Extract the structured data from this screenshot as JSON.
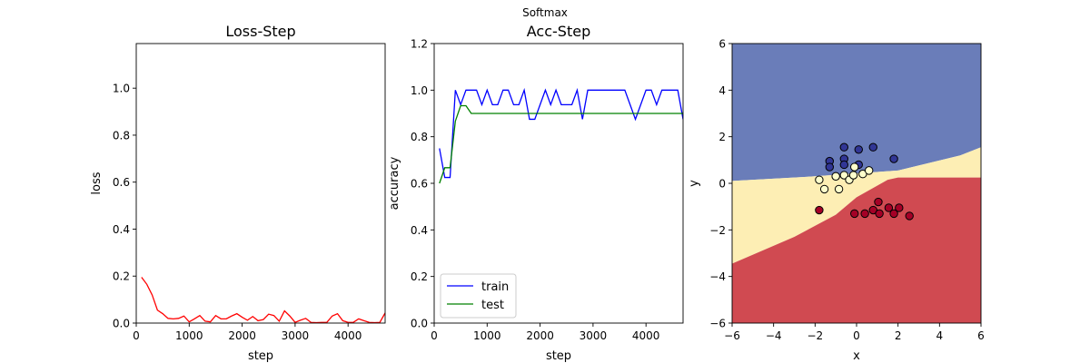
{
  "figure": {
    "suptitle": "Softmax"
  },
  "chart_data": [
    {
      "type": "line",
      "title": "Loss-Step",
      "xlabel": "step",
      "ylabel": "loss",
      "xlim": [
        0,
        4700
      ],
      "ylim": [
        0,
        1.19
      ],
      "xticks": [
        0,
        1000,
        2000,
        3000,
        4000
      ],
      "yticks": [
        0.0,
        0.2,
        0.4,
        0.6,
        0.8,
        1.0
      ],
      "grid": false,
      "series": [
        {
          "color": "#ff0000",
          "x": [
            100,
            200,
            300,
            400,
            500,
            600,
            700,
            800,
            900,
            1000,
            1100,
            1200,
            1300,
            1400,
            1500,
            1600,
            1700,
            1800,
            1900,
            2000,
            2100,
            2200,
            2300,
            2400,
            2500,
            2600,
            2700,
            2800,
            2900,
            3000,
            3100,
            3200,
            3300,
            3400,
            3500,
            3600,
            3700,
            3800,
            3900,
            4000,
            4100,
            4200,
            4300,
            4400,
            4500,
            4600,
            4700
          ],
          "y": [
            0.195,
            0.165,
            0.12,
            0.055,
            0.04,
            0.02,
            0.018,
            0.02,
            0.03,
            0.005,
            0.018,
            0.032,
            0.008,
            0.005,
            0.032,
            0.018,
            0.018,
            0.03,
            0.04,
            0.025,
            0.012,
            0.028,
            0.01,
            0.015,
            0.038,
            0.032,
            0.008,
            0.052,
            0.03,
            0.003,
            0.012,
            0.02,
            0.003,
            0.002,
            0.003,
            0.003,
            0.03,
            0.04,
            0.01,
            0.003,
            0.003,
            0.018,
            0.01,
            0.003,
            0.002,
            0.003,
            0.043
          ]
        }
      ]
    },
    {
      "type": "line",
      "title": "Acc-Step",
      "xlabel": "step",
      "ylabel": "accuracy",
      "xlim": [
        0,
        4700
      ],
      "ylim": [
        0,
        1.2
      ],
      "xticks": [
        0,
        1000,
        2000,
        3000,
        4000
      ],
      "yticks": [
        0.0,
        0.2,
        0.4,
        0.6,
        0.8,
        1.0,
        1.2
      ],
      "grid": false,
      "legend": "lower-left",
      "series": [
        {
          "name": "train",
          "color": "#0000ff",
          "x": [
            100,
            200,
            300,
            400,
            500,
            600,
            700,
            800,
            900,
            1000,
            1100,
            1200,
            1300,
            1400,
            1500,
            1600,
            1700,
            1800,
            1900,
            2000,
            2100,
            2200,
            2300,
            2400,
            2500,
            2600,
            2700,
            2800,
            2900,
            3000,
            3100,
            3200,
            3300,
            3400,
            3500,
            3600,
            3700,
            3800,
            3900,
            4000,
            4100,
            4200,
            4300,
            4400,
            4500,
            4600,
            4700
          ],
          "y": [
            0.75,
            0.625,
            0.625,
            1.0,
            0.9375,
            1.0,
            1.0,
            1.0,
            0.9375,
            1.0,
            0.9375,
            0.9375,
            1.0,
            1.0,
            0.9375,
            0.9375,
            1.0,
            0.875,
            0.875,
            0.9375,
            1.0,
            0.9375,
            1.0,
            0.9375,
            0.9375,
            0.9375,
            1.0,
            0.875,
            1.0,
            1.0,
            1.0,
            1.0,
            1.0,
            1.0,
            1.0,
            1.0,
            0.9375,
            0.875,
            0.9375,
            1.0,
            1.0,
            0.9375,
            1.0,
            1.0,
            1.0,
            1.0,
            0.875
          ]
        },
        {
          "name": "test",
          "color": "#008000",
          "x": [
            100,
            200,
            300,
            400,
            500,
            600,
            700,
            800,
            900,
            1000,
            1100,
            1200,
            1300,
            1400,
            1500,
            1600,
            1700,
            1800,
            1900,
            2000,
            2100,
            2200,
            2300,
            2400,
            2500,
            2600,
            2700,
            2800,
            2900,
            3000,
            3100,
            3200,
            3300,
            3400,
            3500,
            3600,
            3700,
            3800,
            3900,
            4000,
            4100,
            4200,
            4300,
            4400,
            4500,
            4600,
            4700
          ],
          "y": [
            0.6,
            0.667,
            0.667,
            0.867,
            0.933,
            0.933,
            0.9,
            0.9,
            0.9,
            0.9,
            0.9,
            0.9,
            0.9,
            0.9,
            0.9,
            0.9,
            0.9,
            0.9,
            0.9,
            0.9,
            0.9,
            0.9,
            0.9,
            0.9,
            0.9,
            0.9,
            0.9,
            0.9,
            0.9,
            0.9,
            0.9,
            0.9,
            0.9,
            0.9,
            0.9,
            0.9,
            0.9,
            0.9,
            0.9,
            0.9,
            0.9,
            0.9,
            0.9,
            0.9,
            0.9,
            0.9,
            0.9
          ]
        }
      ]
    },
    {
      "type": "scatter",
      "title": "",
      "xlabel": "x",
      "ylabel": "y",
      "xlim": [
        -6,
        6
      ],
      "ylim": [
        -6,
        6
      ],
      "xticks": [
        -6,
        -4,
        -2,
        0,
        2,
        4,
        6
      ],
      "yticks": [
        -6,
        -4,
        -2,
        0,
        2,
        4,
        6
      ],
      "grid": false,
      "regions": [
        {
          "class": 0,
          "color": "#6a7db9"
        },
        {
          "class": 1,
          "color": "#fdeeb4"
        },
        {
          "class": 2,
          "color": "#d04a51"
        }
      ],
      "boundaries": {
        "upper_edge": [
          [
            -6,
            0.1
          ],
          [
            -2,
            0.3
          ],
          [
            2,
            0.55
          ],
          [
            5,
            1.2
          ],
          [
            6,
            1.55
          ]
        ],
        "lower_edge": [
          [
            -6,
            -3.45
          ],
          [
            -3,
            -2.3
          ],
          [
            -1,
            -1.35
          ],
          [
            0,
            -0.6
          ],
          [
            1.5,
            0.15
          ],
          [
            2,
            0.25
          ],
          [
            6,
            0.25
          ]
        ]
      },
      "series": [
        {
          "class": 0,
          "color": "#313695",
          "points": [
            [
              -1.3,
              0.95
            ],
            [
              -1.3,
              0.7
            ],
            [
              -0.6,
              1.55
            ],
            [
              -0.6,
              1.05
            ],
            [
              -0.6,
              0.8
            ],
            [
              0.1,
              1.45
            ],
            [
              0.8,
              1.55
            ],
            [
              0.1,
              0.8
            ],
            [
              1.8,
              1.05
            ],
            [
              -1.0,
              0.3
            ]
          ]
        },
        {
          "class": 1,
          "color": "#ffffcc",
          "points": [
            [
              -1.8,
              0.15
            ],
            [
              -1.55,
              -0.25
            ],
            [
              -1.0,
              0.3
            ],
            [
              -0.85,
              -0.25
            ],
            [
              -0.6,
              0.35
            ],
            [
              -0.35,
              0.15
            ],
            [
              -0.1,
              0.7
            ],
            [
              -0.15,
              0.35
            ],
            [
              0.3,
              0.4
            ],
            [
              0.6,
              0.55
            ]
          ]
        },
        {
          "class": 2,
          "color": "#a50026",
          "points": [
            [
              -1.8,
              -1.15
            ],
            [
              -0.1,
              -1.3
            ],
            [
              0.4,
              -1.3
            ],
            [
              0.8,
              -1.15
            ],
            [
              1.05,
              -0.8
            ],
            [
              1.1,
              -1.3
            ],
            [
              1.55,
              -1.05
            ],
            [
              1.8,
              -1.3
            ],
            [
              2.05,
              -1.05
            ],
            [
              2.55,
              -1.4
            ]
          ]
        }
      ]
    }
  ]
}
